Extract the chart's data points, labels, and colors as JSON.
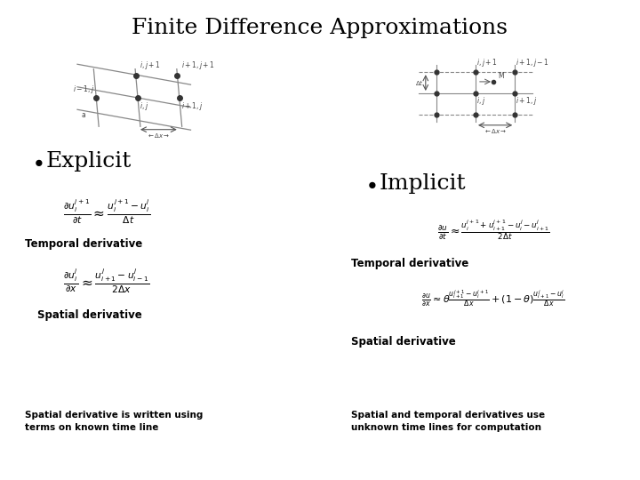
{
  "title": "Finite Difference Approximations",
  "title_fontsize": 18,
  "background_color": "#ffffff",
  "left_bullet": "Explicit",
  "right_bullet": "Implicit",
  "left_temporal_label": "Temporal derivative",
  "right_temporal_label": "Temporal derivative",
  "left_spatial_label": "Spatial derivative",
  "right_spatial_label": "Spatial derivative",
  "left_bottom_note": "Spatial derivative is written using\nterms on known time line",
  "right_bottom_note": "Spatial and temporal derivatives use\nunknown time lines for computation",
  "left_temporal_eq": "$\\frac{\\partial u_i^{j+1}}{\\partial t} \\approx \\frac{u_i^{j+1} - u_i^{j}}{\\Delta t}$",
  "right_temporal_eq": "$\\frac{\\partial u}{\\partial t} \\approx \\frac{u_i^{j+1} + u_{i+1}^{j+1} - u_i^{j} - u_{i+1}^{j}}{2\\Delta t}$",
  "left_spatial_eq": "$\\frac{\\partial u_i^{j}}{\\partial x} \\approx \\frac{u_{i+1}^{j} - u_{i-1}^{j}}{2\\Delta x}$",
  "right_spatial_eq": "$\\frac{\\partial u}{\\partial x} \\approx \\theta\\frac{u_{i+1}^{j+1} - u_i^{j+1}}{\\Delta x} + (1-\\theta)\\frac{u_{i+1}^{j} - u_i^{j}}{\\Delta x}$",
  "grid_color": "#888888",
  "dot_color": "#333333"
}
